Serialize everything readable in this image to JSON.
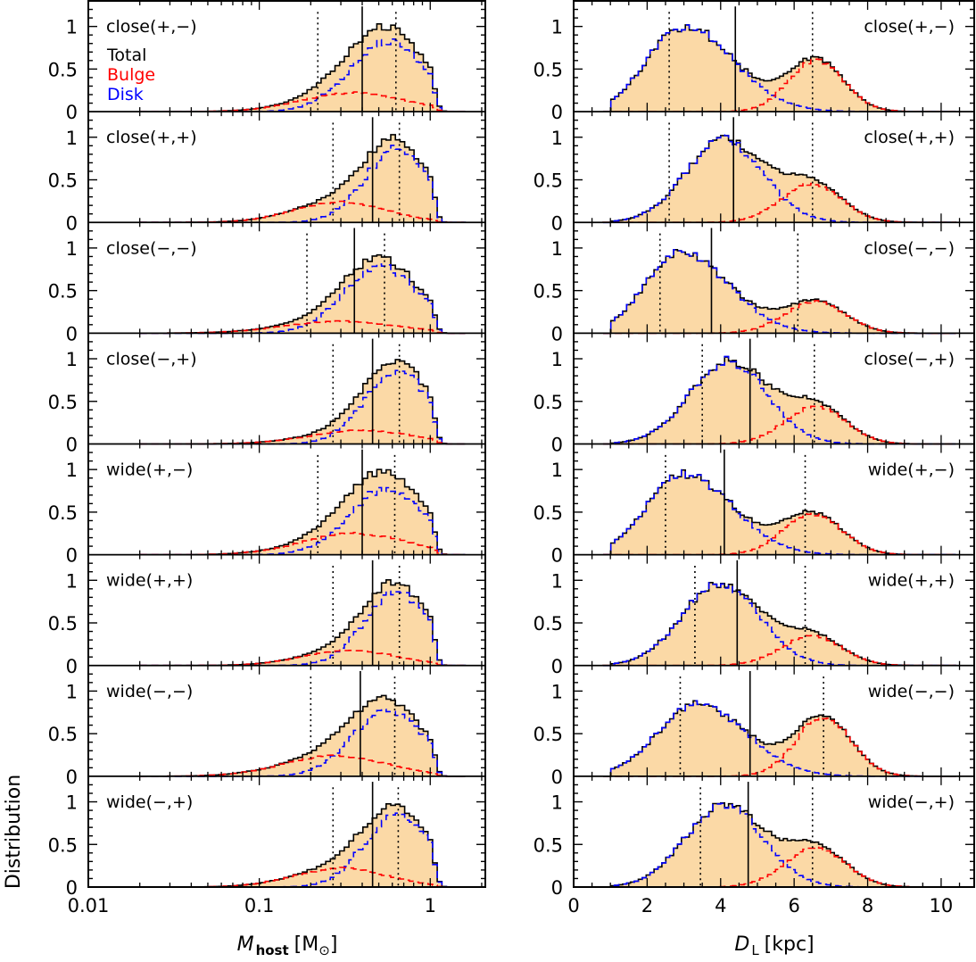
{
  "figure": {
    "ylabel": "Distribution",
    "legend": {
      "total": "Total",
      "bulge": "Bulge",
      "disk": "Disk"
    },
    "colors": {
      "fill": "#fbd9a6",
      "total": "#000000",
      "bulge": "#ff0000",
      "disk": "#0000ff"
    }
  },
  "left_axis": {
    "xlabel": "M",
    "xlabel_sub": "host",
    "xlabel_unit": "[M",
    "xlabel_unit_symbol": "⊙",
    "xlabel_unit_close": "]",
    "xscale": "log",
    "xlim": [
      0.01,
      2.1
    ],
    "xticks": [
      0.01,
      0.1,
      1
    ],
    "xtick_labels": [
      "0.01",
      "0.1",
      "1"
    ]
  },
  "right_axis": {
    "xlabel": "D",
    "xlabel_sub": "L",
    "xlabel_unit": "[kpc]",
    "xlim": [
      0,
      10.9
    ],
    "xticks": [
      0,
      2,
      4,
      6,
      8,
      10
    ],
    "xtick_labels": [
      "0",
      "2",
      "4",
      "6",
      "8",
      "10"
    ]
  },
  "ytick_labels": [
    "0",
    "0.5",
    "1"
  ],
  "ylim": [
    0,
    1.3
  ],
  "chart_data": [
    {
      "type": "histogram",
      "panel": "left",
      "row": 0,
      "label": "close(+,−)",
      "median": 0.4,
      "lo": 0.22,
      "hi": 0.63,
      "total": {
        "peak": 0.5,
        "width": 0.3,
        "skew": -0.13
      },
      "disk": {
        "peak": 0.56,
        "width": 0.22,
        "amp": 0.82
      },
      "bulge": {
        "peak": 0.36,
        "width": 0.3,
        "amp": 0.22
      },
      "show_legend": true
    },
    {
      "type": "histogram",
      "panel": "left",
      "row": 1,
      "label": "close(+,+)",
      "median": 0.46,
      "lo": 0.27,
      "hi": 0.66,
      "total": {
        "peak": 0.62,
        "width": 0.26,
        "skew": -0.16
      },
      "disk": {
        "peak": 0.64,
        "width": 0.19,
        "amp": 0.86
      },
      "bulge": {
        "peak": 0.3,
        "width": 0.27,
        "amp": 0.24
      }
    },
    {
      "type": "histogram",
      "panel": "left",
      "row": 2,
      "label": "close(−,−)",
      "median": 0.36,
      "lo": 0.19,
      "hi": 0.54,
      "total": {
        "peak": 0.47,
        "width": 0.32,
        "skew": -0.12
      },
      "disk": {
        "peak": 0.52,
        "width": 0.22,
        "amp": 0.78
      },
      "bulge": {
        "peak": 0.3,
        "width": 0.33,
        "amp": 0.14
      }
    },
    {
      "type": "histogram",
      "panel": "left",
      "row": 3,
      "label": "close(−,+)",
      "median": 0.46,
      "lo": 0.27,
      "hi": 0.66,
      "total": {
        "peak": 0.62,
        "width": 0.26,
        "skew": -0.16
      },
      "disk": {
        "peak": 0.64,
        "width": 0.19,
        "amp": 0.86
      },
      "bulge": {
        "peak": 0.4,
        "width": 0.3,
        "amp": 0.16
      }
    },
    {
      "type": "histogram",
      "panel": "left",
      "row": 4,
      "label": "wide(+,−)",
      "median": 0.4,
      "lo": 0.22,
      "hi": 0.62,
      "total": {
        "peak": 0.5,
        "width": 0.3,
        "skew": -0.13
      },
      "disk": {
        "peak": 0.56,
        "width": 0.22,
        "amp": 0.78
      },
      "bulge": {
        "peak": 0.36,
        "width": 0.3,
        "amp": 0.25
      }
    },
    {
      "type": "histogram",
      "panel": "left",
      "row": 5,
      "label": "wide(+,+)",
      "median": 0.46,
      "lo": 0.27,
      "hi": 0.66,
      "total": {
        "peak": 0.62,
        "width": 0.26,
        "skew": -0.16
      },
      "disk": {
        "peak": 0.64,
        "width": 0.19,
        "amp": 0.86
      },
      "bulge": {
        "peak": 0.34,
        "width": 0.27,
        "amp": 0.18
      }
    },
    {
      "type": "histogram",
      "panel": "left",
      "row": 6,
      "label": "wide(−,−)",
      "median": 0.39,
      "lo": 0.2,
      "hi": 0.62,
      "total": {
        "peak": 0.5,
        "width": 0.32,
        "skew": -0.13
      },
      "disk": {
        "peak": 0.57,
        "width": 0.21,
        "amp": 0.78
      },
      "bulge": {
        "peak": 0.28,
        "width": 0.3,
        "amp": 0.24
      }
    },
    {
      "type": "histogram",
      "panel": "left",
      "row": 7,
      "label": "wide(−,+)",
      "median": 0.46,
      "lo": 0.27,
      "hi": 0.65,
      "total": {
        "peak": 0.62,
        "width": 0.26,
        "skew": -0.16
      },
      "disk": {
        "peak": 0.64,
        "width": 0.19,
        "amp": 0.86
      },
      "bulge": {
        "peak": 0.3,
        "width": 0.27,
        "amp": 0.22
      }
    },
    {
      "type": "histogram",
      "panel": "right",
      "row": 0,
      "label": "close(+,−)",
      "median": 4.4,
      "lo": 2.6,
      "hi": 6.5,
      "disk": {
        "peak": 3.0,
        "amp": 1.0,
        "sl": 1.0,
        "sr": 1.35
      },
      "bulge": {
        "peak": 6.6,
        "amp": 0.6,
        "sl": 0.75,
        "sr": 0.75
      }
    },
    {
      "type": "histogram",
      "panel": "right",
      "row": 1,
      "label": "close(+,+)",
      "median": 4.35,
      "lo": 2.6,
      "hi": 6.5,
      "disk": {
        "peak": 4.1,
        "amp": 0.97,
        "sl": 1.05,
        "sr": 1.05
      },
      "bulge": {
        "peak": 6.5,
        "amp": 0.45,
        "sl": 0.85,
        "sr": 0.8
      }
    },
    {
      "type": "histogram",
      "panel": "right",
      "row": 2,
      "label": "close(−,−)",
      "median": 3.75,
      "lo": 2.35,
      "hi": 6.1,
      "disk": {
        "peak": 2.9,
        "amp": 0.95,
        "sl": 0.95,
        "sr": 1.3
      },
      "bulge": {
        "peak": 6.6,
        "amp": 0.37,
        "sl": 0.85,
        "sr": 0.8
      }
    },
    {
      "type": "histogram",
      "panel": "right",
      "row": 3,
      "label": "close(−,+)",
      "median": 4.8,
      "lo": 3.5,
      "hi": 6.55,
      "disk": {
        "peak": 4.2,
        "amp": 0.97,
        "sl": 1.05,
        "sr": 1.05
      },
      "bulge": {
        "peak": 6.6,
        "amp": 0.44,
        "sl": 0.85,
        "sr": 0.8
      }
    },
    {
      "type": "histogram",
      "panel": "right",
      "row": 4,
      "label": "wide(+,−)",
      "median": 4.1,
      "lo": 2.5,
      "hi": 6.3,
      "disk": {
        "peak": 3.0,
        "amp": 0.95,
        "sl": 1.0,
        "sr": 1.3
      },
      "bulge": {
        "peak": 6.5,
        "amp": 0.48,
        "sl": 0.8,
        "sr": 0.8
      }
    },
    {
      "type": "histogram",
      "panel": "right",
      "row": 5,
      "label": "wide(+,+)",
      "median": 4.45,
      "lo": 3.3,
      "hi": 6.3,
      "disk": {
        "peak": 4.0,
        "amp": 0.97,
        "sl": 1.05,
        "sr": 1.05
      },
      "bulge": {
        "peak": 6.5,
        "amp": 0.35,
        "sl": 0.85,
        "sr": 0.8
      }
    },
    {
      "type": "histogram",
      "panel": "right",
      "row": 6,
      "label": "wide(−,−)",
      "median": 4.8,
      "lo": 2.9,
      "hi": 6.8,
      "disk": {
        "peak": 3.4,
        "amp": 0.85,
        "sl": 1.1,
        "sr": 1.3
      },
      "bulge": {
        "peak": 6.8,
        "amp": 0.7,
        "sl": 0.75,
        "sr": 0.75
      }
    },
    {
      "type": "histogram",
      "panel": "right",
      "row": 7,
      "label": "wide(−,+)",
      "median": 4.75,
      "lo": 3.45,
      "hi": 6.5,
      "disk": {
        "peak": 4.1,
        "amp": 0.97,
        "sl": 1.05,
        "sr": 1.05
      },
      "bulge": {
        "peak": 6.6,
        "amp": 0.46,
        "sl": 0.85,
        "sr": 0.8
      }
    }
  ]
}
